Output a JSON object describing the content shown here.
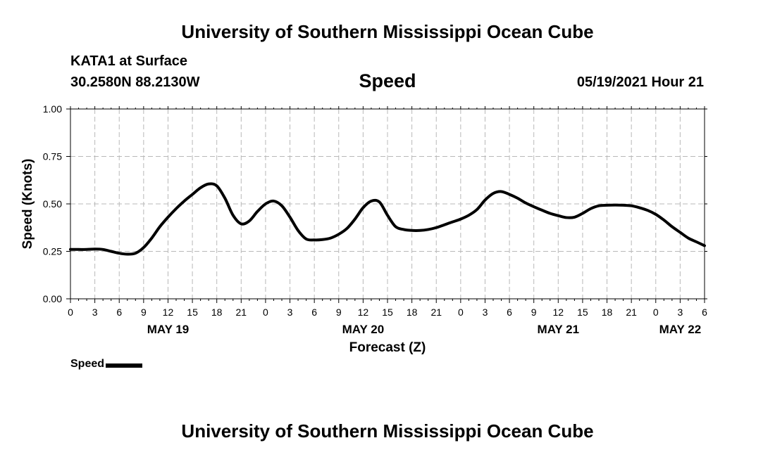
{
  "header": {
    "title": "University of Southern Mississippi Ocean Cube",
    "station": "KATA1 at Surface",
    "coords": "30.2580N  88.2130W",
    "date_hour": "05/19/2021 Hour 21",
    "footer_title": "University of Southern Mississippi Ocean Cube"
  },
  "legend": {
    "label": "Speed"
  },
  "chart_data": {
    "type": "line",
    "title": "Speed",
    "xlabel": "Forecast (Z)",
    "ylabel": "Speed (Knots)",
    "ylim": [
      0,
      1
    ],
    "xlim": [
      0,
      78
    ],
    "grid": true,
    "yticks": [
      0,
      0.25,
      0.5,
      0.75,
      1.0
    ],
    "ytick_labels": [
      "0.00",
      "0.25",
      "0.50",
      "0.75",
      "1.00"
    ],
    "xtick_labels": [
      "0",
      "3",
      "6",
      "9",
      "12",
      "15",
      "18",
      "21",
      "0",
      "3",
      "6",
      "9",
      "12",
      "15",
      "18",
      "21",
      "0",
      "3",
      "6",
      "9",
      "12",
      "15",
      "18",
      "21",
      "0",
      "3",
      "6"
    ],
    "day_labels": [
      {
        "label": "MAY 19",
        "x": 12
      },
      {
        "label": "MAY 20",
        "x": 36
      },
      {
        "label": "MAY 21",
        "x": 60
      },
      {
        "label": "MAY 22",
        "x": 75
      }
    ],
    "series": [
      {
        "name": "Speed",
        "color": "#000000",
        "x": [
          0,
          1,
          2,
          3,
          4,
          5,
          6,
          7,
          8,
          9,
          10,
          11,
          12,
          13,
          14,
          15,
          16,
          17,
          18,
          19,
          20,
          21,
          22,
          23,
          24,
          25,
          26,
          27,
          28,
          29,
          30,
          31,
          32,
          33,
          34,
          35,
          36,
          37,
          38,
          39,
          40,
          41,
          42,
          43,
          44,
          45,
          46,
          47,
          48,
          49,
          50,
          51,
          52,
          53,
          54,
          55,
          56,
          57,
          58,
          59,
          60,
          61,
          62,
          63,
          64,
          65,
          66,
          67,
          68,
          69,
          70,
          71,
          72,
          73,
          74,
          75,
          76,
          77,
          78
        ],
        "values": [
          0.26,
          0.26,
          0.26,
          0.262,
          0.26,
          0.25,
          0.24,
          0.235,
          0.24,
          0.27,
          0.32,
          0.38,
          0.43,
          0.475,
          0.515,
          0.55,
          0.585,
          0.605,
          0.595,
          0.53,
          0.44,
          0.395,
          0.41,
          0.46,
          0.5,
          0.515,
          0.49,
          0.43,
          0.36,
          0.315,
          0.31,
          0.312,
          0.32,
          0.34,
          0.37,
          0.42,
          0.48,
          0.515,
          0.51,
          0.44,
          0.38,
          0.365,
          0.36,
          0.36,
          0.365,
          0.375,
          0.39,
          0.405,
          0.42,
          0.44,
          0.47,
          0.52,
          0.555,
          0.565,
          0.55,
          0.53,
          0.505,
          0.485,
          0.467,
          0.45,
          0.438,
          0.428,
          0.43,
          0.45,
          0.475,
          0.49,
          0.493,
          0.494,
          0.493,
          0.49,
          0.48,
          0.466,
          0.445,
          0.415,
          0.38,
          0.35,
          0.32,
          0.3,
          0.28
        ]
      }
    ]
  }
}
